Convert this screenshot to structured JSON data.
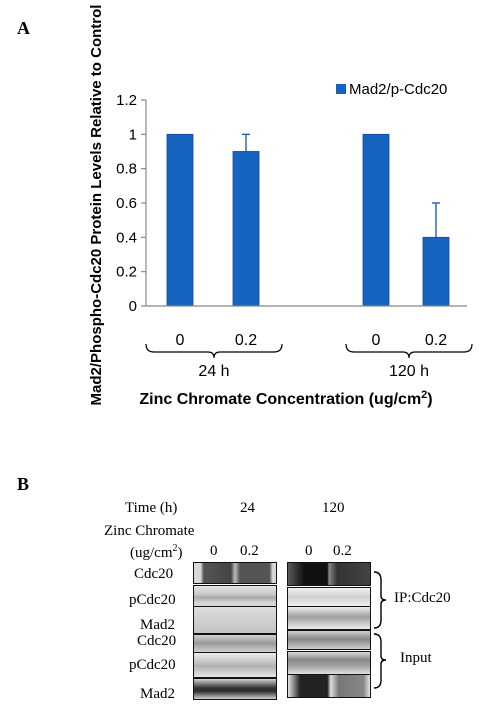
{
  "panel_a_label": "A",
  "panel_b_label": "B",
  "chart_data": {
    "type": "bar",
    "categories": [
      "24 h / 0",
      "24 h / 0.2",
      "120 h / 0",
      "120 h / 0.2"
    ],
    "series": [
      {
        "name": "Mad2/p-Cdc20",
        "values": [
          1.0,
          0.9,
          1.0,
          0.4
        ],
        "errors": [
          0,
          0.1,
          0,
          0.2
        ],
        "color": "#1565c0"
      }
    ],
    "ylabel": "Mad2/Phospho-Cdc20 Protein Levels Relative to Control",
    "xlabel": "Zinc Chromate Concentration (ug/cm",
    "xlabel_sup": "2",
    "xlabel_end": ")",
    "ylim": [
      0,
      1.2
    ],
    "yticks": [
      "0",
      "0.2",
      "0.4",
      "0.6",
      "0.8",
      "1",
      "1.2"
    ],
    "conc_labels": [
      "0",
      "0.2",
      "0",
      "0.2"
    ],
    "group_labels": [
      "24 h",
      "120 h"
    ],
    "legend_position": "top-right",
    "grid": false
  },
  "blot": {
    "time_label": "Time (h)",
    "time_values": [
      "24",
      "120"
    ],
    "zinc_label": "Zinc Chromate",
    "unit_label_start": "(ug/cm",
    "unit_sup": "2",
    "unit_end": ")",
    "conc_values": [
      "0",
      "0.2",
      "0",
      "0.2"
    ],
    "rows": [
      "Cdc20",
      "pCdc20",
      "Mad2",
      "Cdc20",
      "pCdc20",
      "Mad2"
    ],
    "bracket_labels": [
      "IP:Cdc20",
      "Input"
    ]
  }
}
